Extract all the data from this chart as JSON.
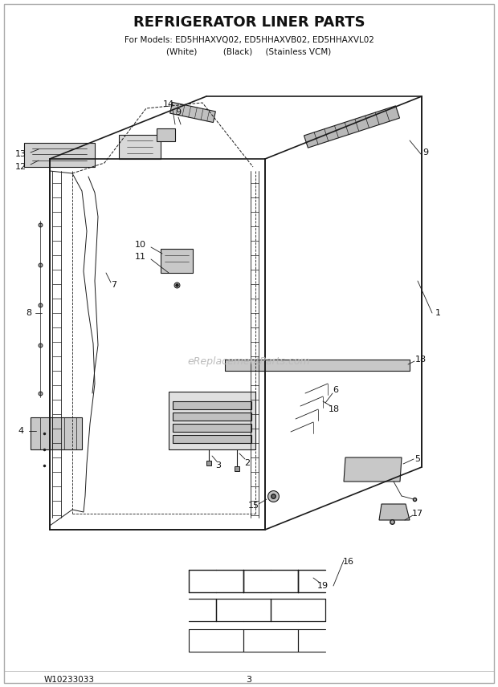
{
  "title": "REFRIGERATOR LINER PARTS",
  "subtitle1": "For Models: ED5HHAXVQ02, ED5HHAXVB02, ED5HHAXVL02",
  "subtitle2": "(White)          (Black)     (Stainless VCM)",
  "footer_left": "W10233033",
  "footer_center": "3",
  "watermark": "eReplacementParts.com",
  "bg_color": "#ffffff",
  "line_color": "#1a1a1a"
}
